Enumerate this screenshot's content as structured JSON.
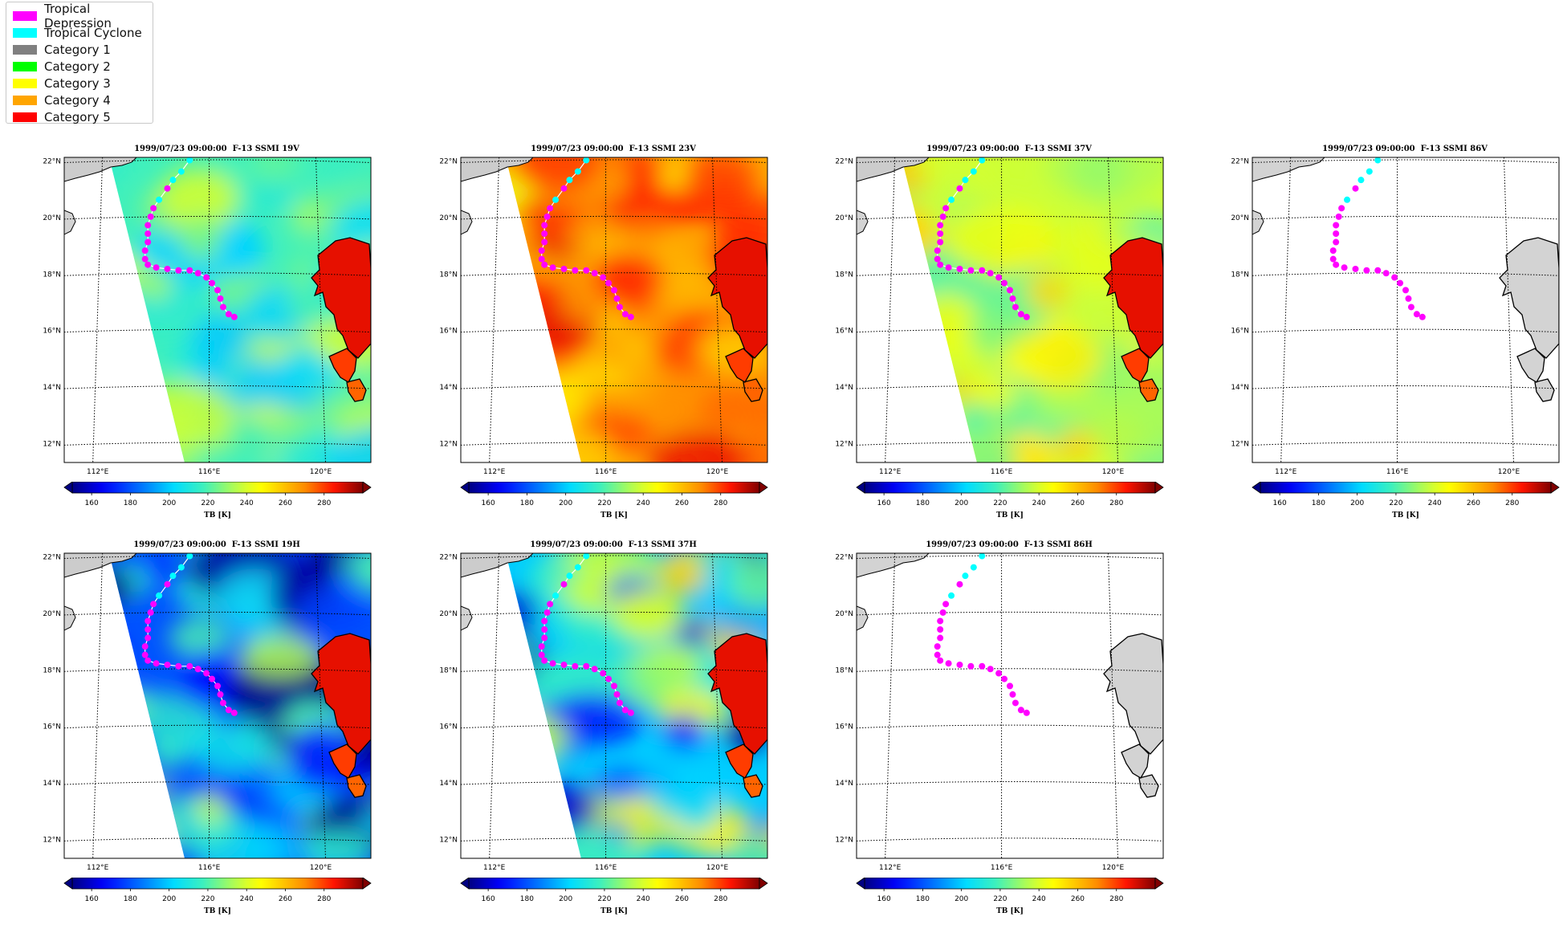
{
  "legend": {
    "items": [
      {
        "label": "Tropical Depression",
        "color": "#ff00ff"
      },
      {
        "label": "Tropical Cyclone",
        "color": "#00ffff"
      },
      {
        "label": "Category 1",
        "color": "#808080"
      },
      {
        "label": "Category 2",
        "color": "#00ff00"
      },
      {
        "label": "Category 3",
        "color": "#ffff00"
      },
      {
        "label": "Category 4",
        "color": "#ffa500"
      },
      {
        "label": "Category 5",
        "color": "#ff0000"
      }
    ]
  },
  "panels": [
    {
      "title": "1999/07/23 09:00:00  F-13 SSMI 19V",
      "channel": "19V",
      "mean_tb": 218,
      "has_data": true
    },
    {
      "title": "1999/07/23 09:00:00  F-13 SSMI 23V",
      "channel": "23V",
      "mean_tb": 264,
      "has_data": true
    },
    {
      "title": "1999/07/23 09:00:00  F-13 SSMI 37V",
      "channel": "37V",
      "mean_tb": 238,
      "has_data": true
    },
    {
      "title": "1999/07/23 09:00:00  F-13 SSMI 86V",
      "channel": "86V",
      "mean_tb": null,
      "has_data": false
    },
    {
      "title": "1999/07/23 09:00:00  F-13 SSMI 19H",
      "channel": "19H",
      "mean_tb": 180,
      "has_data": true
    },
    {
      "title": "1999/07/23 09:00:00  F-13 SSMI 37H",
      "channel": "37H",
      "mean_tb": 200,
      "has_data": true
    },
    {
      "title": "1999/07/23 09:00:00  F-13 SSMI 86H",
      "channel": "86H",
      "mean_tb": null,
      "has_data": false
    }
  ],
  "map_axes": {
    "lat_ticks": [
      "22°N",
      "20°N",
      "18°N",
      "16°N",
      "14°N",
      "12°N"
    ],
    "lon_ticks": [
      "112°E",
      "116°E",
      "120°E"
    ]
  },
  "colorbar": {
    "label": "TB [K]",
    "ticks": [
      "160",
      "180",
      "200",
      "220",
      "240",
      "260",
      "280"
    ],
    "range": [
      150,
      300
    ]
  },
  "track": {
    "points": [
      {
        "lon": 115.3,
        "lat": 22.0,
        "cat": "TC"
      },
      {
        "lon": 115.0,
        "lat": 21.6,
        "cat": "TC"
      },
      {
        "lon": 114.7,
        "lat": 21.3,
        "cat": "TC"
      },
      {
        "lon": 114.5,
        "lat": 21.0,
        "cat": "TD"
      },
      {
        "lon": 114.2,
        "lat": 20.6,
        "cat": "TC"
      },
      {
        "lon": 114.0,
        "lat": 20.3,
        "cat": "TD"
      },
      {
        "lon": 113.9,
        "lat": 20.0,
        "cat": "TD"
      },
      {
        "lon": 113.8,
        "lat": 19.7,
        "cat": "TD"
      },
      {
        "lon": 113.8,
        "lat": 19.4,
        "cat": "TD"
      },
      {
        "lon": 113.8,
        "lat": 19.1,
        "cat": "TD"
      },
      {
        "lon": 113.7,
        "lat": 18.8,
        "cat": "TD"
      },
      {
        "lon": 113.7,
        "lat": 18.5,
        "cat": "TD"
      },
      {
        "lon": 113.8,
        "lat": 18.3,
        "cat": "TD"
      },
      {
        "lon": 114.1,
        "lat": 18.2,
        "cat": "TD"
      },
      {
        "lon": 114.5,
        "lat": 18.15,
        "cat": "TD"
      },
      {
        "lon": 114.9,
        "lat": 18.1,
        "cat": "TD"
      },
      {
        "lon": 115.3,
        "lat": 18.1,
        "cat": "TD"
      },
      {
        "lon": 115.6,
        "lat": 18.0,
        "cat": "TD"
      },
      {
        "lon": 115.9,
        "lat": 17.85,
        "cat": "TD"
      },
      {
        "lon": 116.1,
        "lat": 17.65,
        "cat": "TD"
      },
      {
        "lon": 116.3,
        "lat": 17.4,
        "cat": "TD"
      },
      {
        "lon": 116.4,
        "lat": 17.1,
        "cat": "TD"
      },
      {
        "lon": 116.5,
        "lat": 16.8,
        "cat": "TD"
      },
      {
        "lon": 116.7,
        "lat": 16.55,
        "cat": "TD"
      },
      {
        "lon": 116.9,
        "lat": 16.45,
        "cat": "TD"
      }
    ]
  }
}
